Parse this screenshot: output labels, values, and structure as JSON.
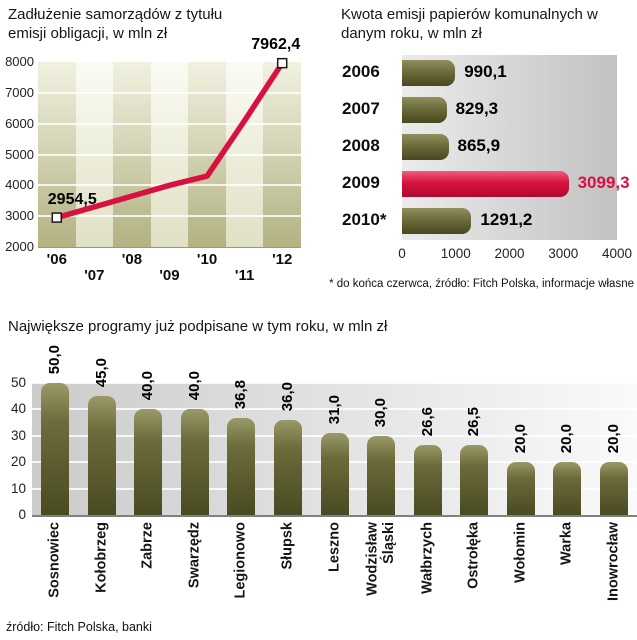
{
  "source": "źródło: Fitch Polska, banki",
  "colors": {
    "red": "#d81140",
    "olive": "#6b6b3b",
    "grid_white": "#ffffff"
  },
  "chart_data": [
    {
      "id": "debt_line",
      "type": "line",
      "title": "Zadłużenie samorządów z tytułu emisji obligacji, w mln zł",
      "x_labels": [
        "'06",
        "'07",
        "'08",
        "'09",
        "'10",
        "'11",
        "'12"
      ],
      "values": [
        2954.5,
        3300,
        3650,
        4000,
        4300,
        6100,
        7962.4
      ],
      "ylim": [
        2000,
        8000
      ],
      "y_ticks": [
        "8000",
        "7000",
        "6000",
        "5000",
        "4000",
        "3000",
        "2000"
      ],
      "point_labels": {
        "first": "2954,5",
        "last": "7962,4"
      },
      "legend": "none",
      "grid": "horizontal"
    },
    {
      "id": "municipal_paper_emissions",
      "type": "bar",
      "orientation": "horizontal",
      "title": "Kwota emisji papierów komunalnych w danym roku, w mln zł",
      "categories": [
        "2006",
        "2007",
        "2008",
        "2009",
        "2010*"
      ],
      "values": [
        990.1,
        829.3,
        865.9,
        3099.3,
        1291.2
      ],
      "value_labels": [
        "990,1",
        "829,3",
        "865,9",
        "3099,3",
        "1291,2"
      ],
      "highlight_index": 3,
      "xlim": [
        0,
        4000
      ],
      "x_ticks": [
        "0",
        "1000",
        "2000",
        "3000",
        "4000"
      ],
      "footnote": "* do końca czerwca, źródło: Fitch Polska, informacje własne"
    },
    {
      "id": "largest_programs",
      "type": "bar",
      "orientation": "vertical",
      "title": "Największe programy już podpisane w tym roku, w mln zł",
      "categories": [
        "Sosnowiec",
        "Kołobrzeg",
        "Zabrze",
        "Swarzędz",
        "Legionowo",
        "Słupsk",
        "Leszno",
        "Wodzisław\nŚląski",
        "Wałbrzych",
        "Ostrołęka",
        "Wołomin",
        "Warka",
        "Inowrocław"
      ],
      "values": [
        50.0,
        45.0,
        40.0,
        40.0,
        36.8,
        36.0,
        31.0,
        30.0,
        26.6,
        26.5,
        20.0,
        20.0,
        20.0
      ],
      "value_labels": [
        "50,0",
        "45,0",
        "40,0",
        "40,0",
        "36,8",
        "36,0",
        "31,0",
        "30,0",
        "26,6",
        "26,5",
        "20,0",
        "20,0",
        "20,0"
      ],
      "highlight_index": 0,
      "ylim": [
        0,
        50
      ],
      "y_ticks": [
        "50",
        "40",
        "30",
        "20",
        "10",
        "0"
      ]
    }
  ]
}
